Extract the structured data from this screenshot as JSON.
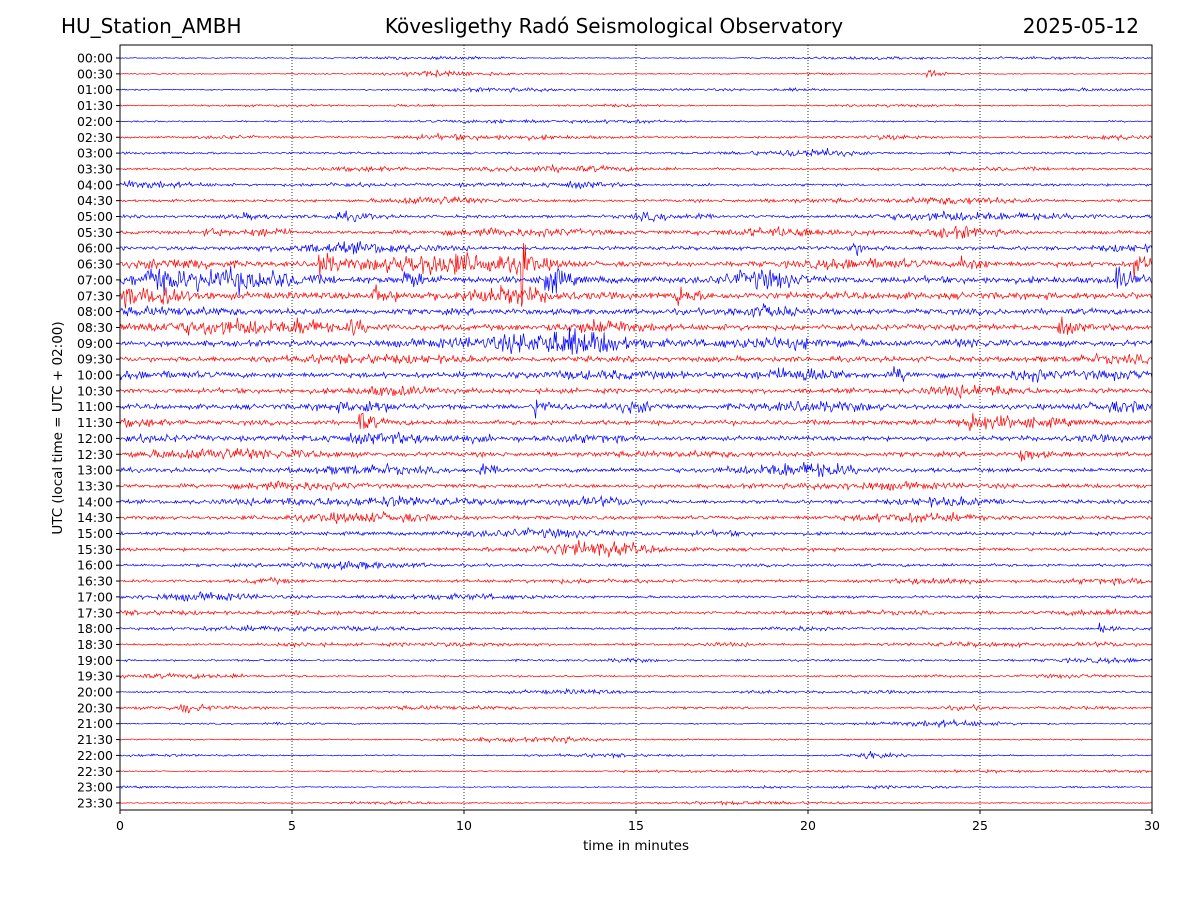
{
  "header": {
    "station": "HU_Station_AMBH",
    "title": "Kövesligethy Radó Seismological Observatory",
    "date": "2025-05-12"
  },
  "chart_data": {
    "type": "line",
    "title": "Kövesligethy Radó Seismological Observatory",
    "xlabel": "time in minutes",
    "ylabel": "UTC (local time = UTC + 02:00)",
    "xlim": [
      0,
      30
    ],
    "x_ticks": [
      0,
      5,
      10,
      15,
      20,
      25,
      30
    ],
    "x_grid": "vertical dotted lines at 5-minute intervals",
    "trace_colors": [
      "#0000ff",
      "#ff0000"
    ],
    "rows": [
      "00:00",
      "00:30",
      "01:00",
      "01:30",
      "02:00",
      "02:30",
      "03:00",
      "03:30",
      "04:00",
      "04:30",
      "05:00",
      "05:30",
      "06:00",
      "06:30",
      "07:00",
      "07:30",
      "08:00",
      "08:30",
      "09:00",
      "09:30",
      "10:00",
      "10:30",
      "11:00",
      "11:30",
      "12:00",
      "12:30",
      "13:00",
      "13:30",
      "14:00",
      "14:30",
      "15:00",
      "15:30",
      "16:00",
      "16:30",
      "17:00",
      "17:30",
      "18:00",
      "18:30",
      "19:00",
      "19:30",
      "20:00",
      "20:30",
      "21:00",
      "21:30",
      "22:00",
      "22:30",
      "23:00",
      "23:30"
    ],
    "noise_level": [
      0.5,
      0.5,
      0.6,
      0.6,
      0.7,
      0.9,
      1.0,
      1.0,
      1.1,
      1.2,
      1.3,
      1.5,
      1.7,
      2.2,
      3.0,
      3.0,
      2.6,
      2.6,
      2.6,
      2.3,
      2.3,
      2.2,
      2.2,
      2.1,
      2.0,
      2.0,
      1.9,
      1.8,
      1.6,
      1.6,
      1.5,
      1.5,
      1.3,
      1.3,
      1.2,
      1.1,
      1.1,
      0.9,
      0.9,
      0.8,
      0.7,
      0.7,
      0.6,
      0.6,
      0.6,
      0.5,
      0.5,
      0.5
    ],
    "events": [
      {
        "row": "00:30",
        "x": 23.5,
        "amp": 4
      },
      {
        "row": "05:00",
        "x": 16.5,
        "amp": 4
      },
      {
        "row": "05:30",
        "x": 2.5,
        "amp": 5
      },
      {
        "row": "06:00",
        "x": 21.2,
        "amp": 9
      },
      {
        "row": "06:30",
        "x": 5.8,
        "amp": 15
      },
      {
        "row": "06:30",
        "x": 11.7,
        "amp": 45
      },
      {
        "row": "06:30",
        "x": 24.5,
        "amp": 9
      },
      {
        "row": "06:30",
        "x": 29.5,
        "amp": 13
      },
      {
        "row": "07:00",
        "x": 0.8,
        "amp": 12
      },
      {
        "row": "07:00",
        "x": 8.3,
        "amp": 10
      },
      {
        "row": "07:00",
        "x": 12.4,
        "amp": 18
      },
      {
        "row": "07:00",
        "x": 29.0,
        "amp": 12
      },
      {
        "row": "07:30",
        "x": 1.2,
        "amp": 12
      },
      {
        "row": "07:30",
        "x": 7.4,
        "amp": 9
      },
      {
        "row": "07:30",
        "x": 16.2,
        "amp": 10
      },
      {
        "row": "08:30",
        "x": 5.2,
        "amp": 8
      },
      {
        "row": "08:30",
        "x": 6.7,
        "amp": 8
      },
      {
        "row": "08:30",
        "x": 27.3,
        "amp": 8
      },
      {
        "row": "10:00",
        "x": 22.5,
        "amp": 7
      },
      {
        "row": "11:00",
        "x": 12.1,
        "amp": 9
      },
      {
        "row": "11:30",
        "x": 7.0,
        "amp": 10
      },
      {
        "row": "11:30",
        "x": 24.7,
        "amp": 8
      },
      {
        "row": "12:30",
        "x": 26.2,
        "amp": 7
      },
      {
        "row": "13:00",
        "x": 10.4,
        "amp": 7
      },
      {
        "row": "18:00",
        "x": 28.5,
        "amp": 7
      },
      {
        "row": "20:30",
        "x": 1.8,
        "amp": 5
      },
      {
        "row": "21:30",
        "x": 12.6,
        "amp": 3
      },
      {
        "row": "22:00",
        "x": 21.7,
        "amp": 4
      }
    ]
  }
}
